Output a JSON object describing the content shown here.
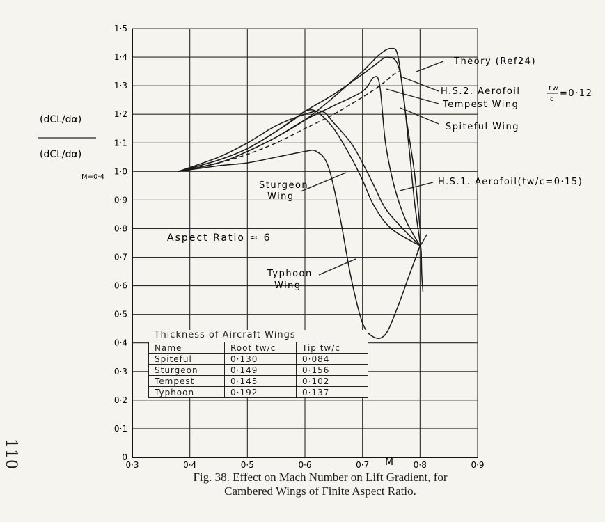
{
  "page_number": "110",
  "caption": {
    "line1": "Fig. 38.   Effect on Mach Number on Lift Gradient, for",
    "line2": "Cambered Wings of Finite Aspect Ratio."
  },
  "chart_data": {
    "type": "line",
    "x_ticks": [
      "0·3",
      "0·4",
      "0·5",
      "0·6",
      "0·7",
      "0·8",
      "0·9"
    ],
    "y_ticks": [
      "0",
      "0·1",
      "0·2",
      "0·3",
      "0·4",
      "0·5",
      "0·6",
      "0·7",
      "0·8",
      "0·9",
      "1·0",
      "1·1",
      "1·2",
      "1·3",
      "1·4",
      "1·5"
    ],
    "xlim": [
      0.3,
      0.9
    ],
    "ylim": [
      0,
      1.5
    ],
    "grid": true,
    "x_label": "M",
    "y_label": {
      "numerator": "(dCL/dα)",
      "denominator": "(dCL/dα)",
      "sub": "M=0·4"
    },
    "annotation": "Aspect Ratio ≈ 6",
    "series": [
      {
        "name": "Theory (Ref 24)",
        "style": "dashed",
        "points": [
          [
            0.38,
            1.0
          ],
          [
            0.45,
            1.03
          ],
          [
            0.5,
            1.06
          ],
          [
            0.55,
            1.1
          ],
          [
            0.6,
            1.15
          ],
          [
            0.65,
            1.2
          ],
          [
            0.7,
            1.26
          ],
          [
            0.73,
            1.3
          ],
          [
            0.755,
            1.34
          ],
          [
            0.765,
            1.35
          ]
        ]
      },
      {
        "name": "H.S.2. Aerofoil (tw/c = 0·12)",
        "style": "solid",
        "points": [
          [
            0.38,
            1.0
          ],
          [
            0.45,
            1.04
          ],
          [
            0.5,
            1.08
          ],
          [
            0.55,
            1.14
          ],
          [
            0.6,
            1.21
          ],
          [
            0.65,
            1.27
          ],
          [
            0.7,
            1.34
          ],
          [
            0.72,
            1.37
          ],
          [
            0.745,
            1.4
          ],
          [
            0.765,
            1.35
          ],
          [
            0.78,
            1.1
          ],
          [
            0.79,
            0.9
          ],
          [
            0.8,
            0.75
          ]
        ]
      },
      {
        "name": "Tempest Wing",
        "style": "solid",
        "points": [
          [
            0.38,
            1.0
          ],
          [
            0.45,
            1.03
          ],
          [
            0.5,
            1.07
          ],
          [
            0.55,
            1.12
          ],
          [
            0.6,
            1.18
          ],
          [
            0.65,
            1.26
          ],
          [
            0.7,
            1.35
          ],
          [
            0.73,
            1.41
          ],
          [
            0.75,
            1.43
          ],
          [
            0.762,
            1.4
          ],
          [
            0.775,
            1.2
          ],
          [
            0.79,
            1.0
          ],
          [
            0.8,
            0.8
          ]
        ]
      },
      {
        "name": "Spiteful Wing",
        "style": "solid",
        "points": [
          [
            0.38,
            1.0
          ],
          [
            0.45,
            1.03
          ],
          [
            0.5,
            1.07
          ],
          [
            0.55,
            1.12
          ],
          [
            0.6,
            1.18
          ],
          [
            0.65,
            1.23
          ],
          [
            0.7,
            1.28
          ],
          [
            0.72,
            1.33
          ],
          [
            0.73,
            1.3
          ],
          [
            0.74,
            1.1
          ],
          [
            0.755,
            0.95
          ],
          [
            0.775,
            0.83
          ],
          [
            0.8,
            0.74
          ]
        ]
      },
      {
        "name": "H.S.1. Aerofoil (tw/c = 0·15)",
        "style": "solid",
        "points": [
          [
            0.38,
            1.0
          ],
          [
            0.45,
            1.05
          ],
          [
            0.5,
            1.1
          ],
          [
            0.55,
            1.16
          ],
          [
            0.6,
            1.2
          ],
          [
            0.63,
            1.21
          ],
          [
            0.65,
            1.17
          ],
          [
            0.68,
            1.1
          ],
          [
            0.7,
            1.03
          ],
          [
            0.72,
            0.95
          ],
          [
            0.74,
            0.87
          ],
          [
            0.77,
            0.8
          ],
          [
            0.8,
            0.74
          ]
        ]
      },
      {
        "name": "Sturgeon Wing",
        "style": "solid",
        "points": [
          [
            0.38,
            1.0
          ],
          [
            0.45,
            1.04
          ],
          [
            0.5,
            1.08
          ],
          [
            0.55,
            1.14
          ],
          [
            0.58,
            1.18
          ],
          [
            0.6,
            1.21
          ],
          [
            0.62,
            1.21
          ],
          [
            0.65,
            1.15
          ],
          [
            0.68,
            1.05
          ],
          [
            0.7,
            0.97
          ],
          [
            0.72,
            0.88
          ],
          [
            0.75,
            0.8
          ],
          [
            0.8,
            0.74
          ]
        ]
      },
      {
        "name": "Typhoon Wing",
        "style": "solid",
        "points": [
          [
            0.38,
            1.0
          ],
          [
            0.45,
            1.02
          ],
          [
            0.5,
            1.03
          ],
          [
            0.55,
            1.05
          ],
          [
            0.6,
            1.07
          ],
          [
            0.62,
            1.07
          ],
          [
            0.64,
            1.02
          ],
          [
            0.66,
            0.85
          ],
          [
            0.68,
            0.63
          ],
          [
            0.7,
            0.47
          ],
          [
            0.72,
            0.42
          ],
          [
            0.74,
            0.43
          ],
          [
            0.76,
            0.52
          ],
          [
            0.78,
            0.63
          ],
          [
            0.8,
            0.74
          ],
          [
            0.8,
            0.75
          ],
          [
            0.802,
            0.72
          ],
          [
            0.803,
            0.64
          ],
          [
            0.805,
            0.58
          ]
        ]
      }
    ],
    "curve_labels": {
      "theory": "Theory (Ref24)",
      "hs2": "H.S.2. Aerofoil",
      "hs2_ratio_num": "tw",
      "hs2_ratio_den": "c",
      "hs2_ratio_val": "=0·12",
      "tempest": "Tempest Wing",
      "spiteful": "Spiteful Wing",
      "hs1": "H.S.1. Aerofoil(tw/c=0·15)",
      "sturgeon_1": "Sturgeon",
      "sturgeon_2": "Wing",
      "typhoon_1": "Typhoon",
      "typhoon_2": "Wing"
    },
    "table": {
      "title": "Thickness of Aircraft Wings",
      "headers": [
        "Name",
        "Root tw/c",
        "Tip tw/c"
      ],
      "rows": [
        [
          "Spiteful",
          "0·130",
          "0·084"
        ],
        [
          "Sturgeon",
          "0·149",
          "0·156"
        ],
        [
          "Tempest",
          "0·145",
          "0·102"
        ],
        [
          "Typhoon",
          "0·192",
          "0·137"
        ]
      ]
    }
  }
}
